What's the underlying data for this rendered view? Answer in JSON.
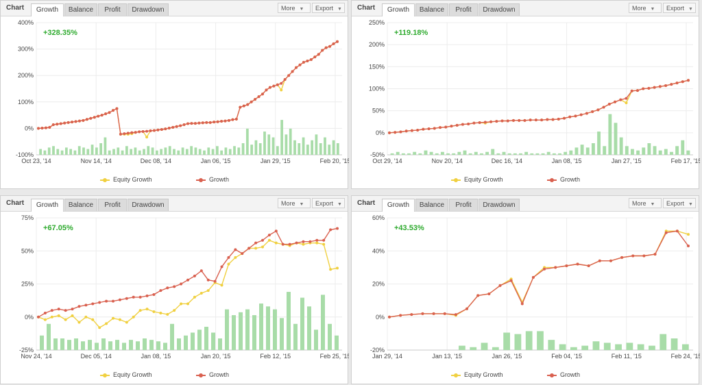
{
  "tabs": {
    "chart": "Chart",
    "growth": "Growth",
    "balance": "Balance",
    "profit": "Profit",
    "drawdown": "Drawdown",
    "more": "More",
    "export": "Export"
  },
  "legend": {
    "equity": "Equity Growth",
    "growth": "Growth"
  },
  "colors": {
    "growth": "#d9604f",
    "equity": "#f0d040",
    "bars": "#a8dca8",
    "gain": "#2eaa2e"
  },
  "icons": {
    "caret": "caret-down-icon"
  },
  "chart_data": [
    {
      "type": "line",
      "gain_label": "+328.35%",
      "y_ticks": [
        "400%",
        "300%",
        "200%",
        "100%",
        "0%",
        "-100%"
      ],
      "ylim": [
        -100,
        400
      ],
      "x_ticks": [
        "Oct 23, '14",
        "Nov 14, '14",
        "Dec 08, '14",
        "Jan 06, '15",
        "Jan 29, '15",
        "Feb 20, '15"
      ],
      "series": [
        {
          "name": "Growth",
          "values": [
            0,
            1,
            2,
            4,
            14,
            16,
            18,
            20,
            22,
            24,
            26,
            28,
            30,
            34,
            38,
            42,
            46,
            50,
            55,
            60,
            68,
            75,
            -22,
            -20,
            -18,
            -16,
            -15,
            -13,
            -12,
            -11,
            -9,
            -8,
            -6,
            -4,
            -2,
            1,
            4,
            7,
            10,
            14,
            18,
            19,
            19,
            20,
            21,
            22,
            22,
            24,
            25,
            27,
            28,
            30,
            33,
            35,
            80,
            85,
            90,
            100,
            110,
            120,
            130,
            145,
            155,
            160,
            165,
            170,
            185,
            200,
            215,
            230,
            240,
            250,
            255,
            260,
            270,
            280,
            295,
            305,
            310,
            320,
            328
          ]
        },
        {
          "name": "Equity Growth",
          "values": [
            0,
            1,
            2,
            4,
            14,
            16,
            18,
            20,
            22,
            24,
            26,
            28,
            30,
            34,
            38,
            42,
            46,
            50,
            55,
            60,
            68,
            75,
            -22,
            -22,
            -22,
            -20,
            -15,
            -13,
            -12,
            -33,
            -9,
            -8,
            -6,
            -4,
            -2,
            1,
            4,
            7,
            10,
            14,
            18,
            19,
            19,
            20,
            21,
            22,
            22,
            24,
            25,
            27,
            28,
            30,
            33,
            35,
            80,
            85,
            90,
            100,
            110,
            120,
            130,
            145,
            155,
            160,
            165,
            145,
            185,
            200,
            215,
            230,
            240,
            250,
            255,
            260,
            270,
            280,
            295,
            305,
            310,
            320,
            328
          ]
        }
      ],
      "bars": [
        4,
        3,
        5,
        6,
        4,
        3,
        5,
        4,
        3,
        6,
        5,
        4,
        7,
        5,
        8,
        12,
        3,
        4,
        5,
        3,
        6,
        4,
        5,
        3,
        4,
        6,
        5,
        3,
        4,
        5,
        6,
        4,
        3,
        5,
        4,
        6,
        5,
        4,
        3,
        5,
        4,
        6,
        3,
        5,
        4,
        6,
        5,
        8,
        18,
        7,
        10,
        8,
        16,
        14,
        12,
        6,
        24,
        14,
        18,
        10,
        8,
        12,
        7,
        10,
        14,
        8,
        12,
        7,
        10,
        8
      ]
    },
    {
      "type": "line",
      "gain_label": "+119.18%",
      "y_ticks": [
        "250%",
        "200%",
        "150%",
        "100%",
        "50%",
        "0%",
        "-50%"
      ],
      "ylim": [
        -50,
        250
      ],
      "x_ticks": [
        "Oct 29, '14",
        "Nov 20, '14",
        "Dec 16, '14",
        "Jan 08, '15",
        "Jan 27, '15",
        "Feb 17, '15"
      ],
      "series": [
        {
          "name": "Growth",
          "values": [
            0,
            1,
            2,
            4,
            5,
            6,
            8,
            9,
            10,
            12,
            13,
            15,
            17,
            19,
            20,
            22,
            23,
            24,
            25,
            26,
            27,
            27,
            28,
            28,
            28,
            29,
            29,
            29,
            30,
            30,
            31,
            33,
            36,
            38,
            41,
            44,
            48,
            52,
            58,
            65,
            70,
            75,
            78,
            95,
            96,
            100,
            101,
            103,
            105,
            107,
            110,
            113,
            116,
            119
          ]
        },
        {
          "name": "Equity Growth",
          "values": [
            0,
            1,
            2,
            4,
            5,
            6,
            8,
            9,
            10,
            12,
            13,
            15,
            17,
            19,
            20,
            22,
            23,
            22,
            25,
            26,
            27,
            27,
            28,
            28,
            28,
            29,
            29,
            29,
            30,
            30,
            31,
            33,
            36,
            38,
            41,
            44,
            48,
            52,
            58,
            65,
            70,
            75,
            68,
            95,
            96,
            100,
            101,
            103,
            105,
            107,
            110,
            113,
            116,
            119
          ]
        }
      ],
      "bars": [
        1,
        2,
        1,
        1,
        2,
        1,
        3,
        2,
        1,
        2,
        1,
        1,
        2,
        3,
        1,
        2,
        1,
        2,
        4,
        1,
        2,
        1,
        1,
        1,
        2,
        1,
        1,
        1,
        2,
        1,
        1,
        2,
        3,
        5,
        7,
        5,
        8,
        16,
        6,
        28,
        22,
        12,
        6,
        4,
        3,
        5,
        8,
        6,
        3,
        4,
        2,
        6,
        10,
        3
      ]
    },
    {
      "type": "line",
      "gain_label": "+67.05%",
      "y_ticks": [
        "75%",
        "50%",
        "25%",
        "0%",
        "-25%"
      ],
      "ylim": [
        -25,
        75
      ],
      "x_ticks": [
        "Nov 24, '14",
        "Dec 05, '14",
        "Jan 08, '15",
        "Jan 20, '15",
        "Feb 12, '15",
        "Feb 25, '15"
      ],
      "series": [
        {
          "name": "Growth",
          "values": [
            0,
            3,
            5,
            6,
            5,
            6,
            8,
            9,
            10,
            11,
            12,
            12,
            13,
            14,
            15,
            15,
            16,
            17,
            20,
            22,
            23,
            25,
            28,
            31,
            35,
            28,
            27,
            38,
            45,
            51,
            48,
            52,
            56,
            58,
            62,
            65,
            55,
            55,
            56,
            57,
            57,
            58,
            58,
            66,
            67
          ]
        },
        {
          "name": "Equity Growth",
          "values": [
            0,
            -2,
            0,
            1,
            -2,
            1,
            -4,
            0,
            -2,
            -8,
            -5,
            -1,
            -2,
            -4,
            0,
            5,
            6,
            4,
            3,
            2,
            5,
            10,
            10,
            15,
            18,
            20,
            26,
            24,
            40,
            45,
            48,
            52,
            52,
            53,
            58,
            56,
            55,
            54,
            56,
            55,
            56,
            56,
            55,
            36,
            37
          ]
        }
      ],
      "bars": [
        10,
        18,
        8,
        8,
        7,
        8,
        6,
        7,
        5,
        8,
        6,
        7,
        5,
        7,
        6,
        8,
        7,
        6,
        5,
        18,
        8,
        10,
        12,
        14,
        16,
        12,
        8,
        28,
        24,
        26,
        28,
        24,
        32,
        30,
        28,
        22,
        40,
        18,
        36,
        30,
        14,
        38,
        18,
        10
      ]
    },
    {
      "type": "line",
      "gain_label": "+43.53%",
      "y_ticks": [
        "60%",
        "40%",
        "20%",
        "0%",
        "-20%"
      ],
      "ylim": [
        -20,
        60
      ],
      "x_ticks": [
        "Jan 29, '14",
        "Jan 13, '15",
        "Jan 26, '15",
        "Feb 04, '15",
        "Feb 11, '15",
        "Feb 24, '15"
      ],
      "series": [
        {
          "name": "Growth",
          "values": [
            0,
            1,
            1.5,
            2,
            2,
            2,
            1.5,
            5,
            13,
            14,
            19,
            22,
            8,
            24,
            29,
            30,
            31,
            32,
            31,
            34,
            34,
            36,
            37,
            37,
            38,
            51,
            52,
            43
          ]
        },
        {
          "name": "Equity Growth",
          "values": [
            0,
            1,
            1.5,
            2,
            2,
            2,
            1,
            5,
            13,
            14,
            19,
            23,
            9,
            24,
            30,
            30,
            31,
            32,
            31,
            34,
            34,
            36,
            37,
            37,
            38,
            52,
            52,
            50
          ]
        }
      ],
      "bars": [
        0,
        0,
        0,
        0,
        0,
        0,
        3,
        2,
        5,
        2,
        12,
        11,
        13,
        13,
        7,
        4,
        2,
        3,
        6,
        5,
        4,
        5,
        4,
        3,
        11,
        8,
        4
      ]
    }
  ]
}
